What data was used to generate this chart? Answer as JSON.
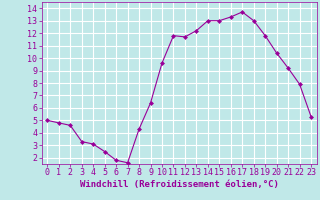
{
  "x": [
    0,
    1,
    2,
    3,
    4,
    5,
    6,
    7,
    8,
    9,
    10,
    11,
    12,
    13,
    14,
    15,
    16,
    17,
    18,
    19,
    20,
    21,
    22,
    23
  ],
  "y": [
    5.0,
    4.8,
    4.6,
    3.3,
    3.1,
    2.5,
    1.8,
    1.6,
    4.3,
    6.4,
    9.6,
    11.8,
    11.7,
    12.2,
    13.0,
    13.0,
    13.3,
    13.7,
    13.0,
    11.8,
    10.4,
    9.2,
    7.9,
    5.3
  ],
  "line_color": "#990099",
  "marker_color": "#990099",
  "bg_color": "#c0e8e8",
  "grid_color": "#ffffff",
  "xlabel": "Windchill (Refroidissement éolien,°C)",
  "xlabel_color": "#990099",
  "tick_color": "#990099",
  "xlim": [
    -0.5,
    23.5
  ],
  "ylim": [
    1.5,
    14.5
  ],
  "yticks": [
    2,
    3,
    4,
    5,
    6,
    7,
    8,
    9,
    10,
    11,
    12,
    13,
    14
  ],
  "xticks": [
    0,
    1,
    2,
    3,
    4,
    5,
    6,
    7,
    8,
    9,
    10,
    11,
    12,
    13,
    14,
    15,
    16,
    17,
    18,
    19,
    20,
    21,
    22,
    23
  ],
  "xlabel_fontsize": 6.5,
  "tick_fontsize": 6.0
}
